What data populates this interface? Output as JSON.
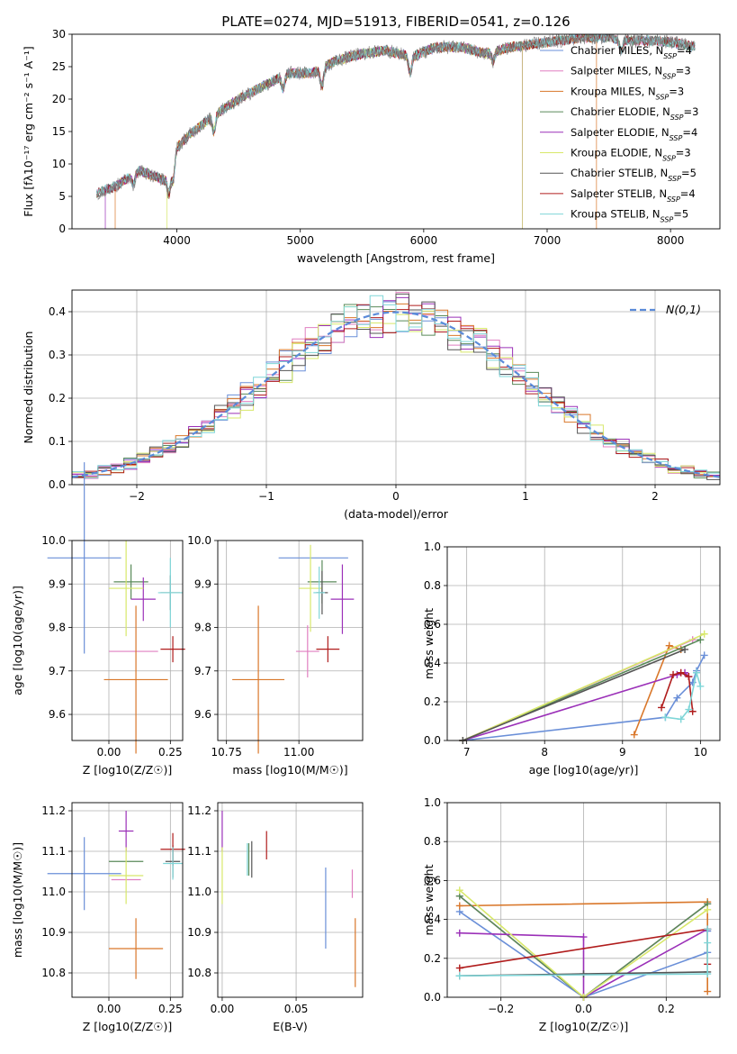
{
  "figure": {
    "title": "PLATE=0274, MJD=51913, FIBERID=0541, z=0.126"
  },
  "series_styles": [
    {
      "name": "Chabrier MILES",
      "n_ssp": "4",
      "color": "#6a8fd8"
    },
    {
      "name": "Salpeter MILES",
      "n_ssp": "3",
      "color": "#e07fc0"
    },
    {
      "name": "Kroupa MILES",
      "n_ssp": "3",
      "color": "#d9772a"
    },
    {
      "name": "Chabrier ELODIE",
      "n_ssp": "3",
      "color": "#5a8a5a"
    },
    {
      "name": "Salpeter ELODIE",
      "n_ssp": "4",
      "color": "#9b30b8"
    },
    {
      "name": "Kroupa ELODIE",
      "n_ssp": "3",
      "color": "#d8e86a"
    },
    {
      "name": "Chabrier STELIB",
      "n_ssp": "5",
      "color": "#555555"
    },
    {
      "name": "Salpeter STELIB",
      "n_ssp": "4",
      "color": "#b01c1c"
    },
    {
      "name": "Kroupa STELIB",
      "n_ssp": "5",
      "color": "#7fd6d8"
    }
  ],
  "chart_data": [
    {
      "id": "spectrum",
      "type": "line",
      "title": "PLATE=0274, MJD=51913, FIBERID=0541, z=0.126",
      "xlabel": "wavelength [Angstrom, rest frame]",
      "ylabel": "Flux [fλ10⁻¹⁷ erg cm⁻² s⁻¹ A⁻¹]",
      "xlim": [
        3150,
        8400
      ],
      "ylim": [
        0,
        30
      ],
      "xticks": [
        4000,
        5000,
        6000,
        7000,
        8000
      ],
      "yticks": [
        0,
        5,
        10,
        15,
        20,
        25,
        30
      ],
      "grid": false,
      "legend": "upper-right",
      "legend_entries": [
        "Chabrier MILES, N_SSP=4",
        "Salpeter MILES, N_SSP=3",
        "Kroupa MILES, N_SSP=3",
        "Chabrier ELODIE, N_SSP=3",
        "Salpeter ELODIE, N_SSP=4",
        "Kroupa ELODIE, N_SSP=3",
        "Chabrier STELIB, N_SSP=5",
        "Salpeter STELIB, N_SSP=4",
        "Kroupa STELIB, N_SSP=5"
      ],
      "data_envelope": {
        "x": [
          3350,
          3500,
          3700,
          3900,
          4000,
          4100,
          4300,
          4500,
          4700,
          4900,
          5100,
          5300,
          5500,
          5700,
          5900,
          6100,
          6300,
          6500,
          6700,
          6900,
          7100,
          7300,
          7500,
          7700,
          7900,
          8100,
          8200
        ],
        "y": [
          5.5,
          6.5,
          9.0,
          7.5,
          12.5,
          14.5,
          17.5,
          20.0,
          22.0,
          24.0,
          24.0,
          26.0,
          27.0,
          27.5,
          26.5,
          28.0,
          28.0,
          27.0,
          28.0,
          28.5,
          29.0,
          29.5,
          29.5,
          29.0,
          29.0,
          28.5,
          28.0
        ]
      },
      "model_cutoffs": [
        {
          "series": "Kroupa MILES",
          "from": 3500,
          "to": 7400
        },
        {
          "series": "Kroupa ELODIE",
          "from": 3920,
          "to": 6800
        },
        {
          "series": "Salpeter ELODIE",
          "from": 3420,
          "to": 6800
        }
      ]
    },
    {
      "id": "residual-histogram",
      "type": "bar",
      "xlabel": "(data-model)/error",
      "ylabel": "Normed distribution",
      "xlim": [
        -2.5,
        2.5
      ],
      "ylim": [
        0,
        0.45
      ],
      "xticks": [
        -2,
        -1,
        0,
        1,
        2
      ],
      "yticks": [
        0.0,
        0.1,
        0.2,
        0.3,
        0.4
      ],
      "grid": true,
      "legend": "upper-right",
      "legend_entries": [
        "N(0,1)"
      ],
      "bin_edges_start": -2.5,
      "bin_width": 0.1,
      "reference_curve": "N(0,1)"
    },
    {
      "id": "age-vs-z",
      "type": "scatter",
      "xlabel": "Z [log10(Z/Z☉)]",
      "ylabel": "age  [log10(age/yr)]",
      "xlim": [
        -0.15,
        0.3
      ],
      "ylim": [
        9.54,
        10.0
      ],
      "xticks": [
        0.0,
        0.25
      ],
      "yticks": [
        9.6,
        9.7,
        9.8,
        9.9,
        10.0
      ],
      "grid": true,
      "points": [
        {
          "series": "Chabrier MILES",
          "x": -0.1,
          "xerr": 0.15,
          "y": 9.96,
          "yerr": 0.22
        },
        {
          "series": "Salpeter MILES",
          "x": 0.1,
          "xerr": 0.1,
          "y": 9.745,
          "yerr": 0.0
        },
        {
          "series": "Kroupa MILES",
          "x": 0.11,
          "xerr": 0.13,
          "y": 9.68,
          "yerr": 0.17
        },
        {
          "series": "Chabrier ELODIE",
          "x": 0.09,
          "xerr": 0.07,
          "y": 9.905,
          "yerr": 0.04
        },
        {
          "series": "Salpeter ELODIE",
          "x": 0.14,
          "xerr": 0.05,
          "y": 9.865,
          "yerr": 0.05
        },
        {
          "series": "Kroupa ELODIE",
          "x": 0.07,
          "xerr": 0.07,
          "y": 9.89,
          "yerr": 0.11
        },
        {
          "series": "Chabrier STELIB",
          "x": 0.25,
          "xerr": 0.04,
          "y": 9.88,
          "yerr": 0.04
        },
        {
          "series": "Salpeter STELIB",
          "x": 0.26,
          "xerr": 0.05,
          "y": 9.75,
          "yerr": 0.03
        },
        {
          "series": "Kroupa STELIB",
          "x": 0.25,
          "xerr": 0.05,
          "y": 9.88,
          "yerr": 0.08
        }
      ]
    },
    {
      "id": "age-vs-mass",
      "type": "scatter",
      "xlabel": "mass [log10(M/M☉)]",
      "ylabel": "",
      "xlim": [
        10.72,
        11.22
      ],
      "ylim": [
        9.54,
        10.0
      ],
      "xticks": [
        10.75,
        11.0
      ],
      "yticks": [
        9.6,
        9.7,
        9.8,
        9.9,
        10.0
      ],
      "grid": true,
      "points": [
        {
          "series": "Chabrier MILES",
          "x": 11.05,
          "xerr": 0.12,
          "y": 9.96,
          "yerr": 0.0
        },
        {
          "series": "Salpeter MILES",
          "x": 11.03,
          "xerr": 0.04,
          "y": 9.745,
          "yerr": 0.06
        },
        {
          "series": "Kroupa MILES",
          "x": 10.86,
          "xerr": 0.09,
          "y": 9.68,
          "yerr": 0.17
        },
        {
          "series": "Chabrier ELODIE",
          "x": 11.08,
          "xerr": 0.05,
          "y": 9.905,
          "yerr": 0.05
        },
        {
          "series": "Salpeter ELODIE",
          "x": 11.15,
          "xerr": 0.04,
          "y": 9.865,
          "yerr": 0.08
        },
        {
          "series": "Kroupa ELODIE",
          "x": 11.04,
          "xerr": 0.04,
          "y": 9.89,
          "yerr": 0.1
        },
        {
          "series": "Chabrier STELIB",
          "x": 11.08,
          "xerr": 0.02,
          "y": 9.88,
          "yerr": 0.05
        },
        {
          "series": "Salpeter STELIB",
          "x": 11.1,
          "xerr": 0.04,
          "y": 9.75,
          "yerr": 0.03
        },
        {
          "series": "Kroupa STELIB",
          "x": 11.07,
          "xerr": 0.02,
          "y": 9.88,
          "yerr": 0.06
        }
      ]
    },
    {
      "id": "mass-weight-vs-age",
      "type": "line",
      "xlabel": "age  [log10(age/yr)]",
      "ylabel": "mass weight",
      "xlim": [
        6.75,
        10.25
      ],
      "ylim": [
        0,
        1.0
      ],
      "xticks": [
        7,
        8,
        9,
        10
      ],
      "yticks": [
        0.0,
        0.2,
        0.4,
        0.6,
        0.8,
        1.0
      ],
      "grid": true,
      "series": [
        {
          "name": "Chabrier MILES",
          "x": [
            6.95,
            9.55,
            9.7,
            9.9,
            9.95,
            10.05
          ],
          "y": [
            0.0,
            0.12,
            0.22,
            0.3,
            0.36,
            0.44
          ]
        },
        {
          "name": "Salpeter MILES",
          "x": [
            6.95,
            9.9
          ],
          "y": [
            0.0,
            0.52
          ]
        },
        {
          "name": "Kroupa MILES",
          "x": [
            9.15,
            9.6,
            9.75
          ],
          "y": [
            0.03,
            0.49,
            0.47
          ]
        },
        {
          "name": "Chabrier ELODIE",
          "x": [
            6.95,
            10.0
          ],
          "y": [
            0.0,
            0.52
          ]
        },
        {
          "name": "Salpeter ELODIE",
          "x": [
            6.95,
            9.7,
            9.8,
            9.85
          ],
          "y": [
            0.0,
            0.34,
            0.35,
            0.33
          ]
        },
        {
          "name": "Kroupa ELODIE",
          "x": [
            6.95,
            10.05
          ],
          "y": [
            0.0,
            0.55
          ]
        },
        {
          "name": "Chabrier STELIB",
          "x": [
            6.95,
            9.8
          ],
          "y": [
            0.0,
            0.47
          ]
        },
        {
          "name": "Salpeter STELIB",
          "x": [
            9.5,
            9.65,
            9.75,
            9.85,
            9.9
          ],
          "y": [
            0.17,
            0.34,
            0.35,
            0.33,
            0.15
          ]
        },
        {
          "name": "Kroupa STELIB",
          "x": [
            9.55,
            9.75,
            9.85,
            9.95,
            10.0
          ],
          "y": [
            0.12,
            0.11,
            0.16,
            0.35,
            0.28
          ]
        }
      ]
    },
    {
      "id": "mass-vs-z",
      "type": "scatter",
      "xlabel": "Z [log10(Z/Z☉)]",
      "ylabel": "mass [log10(M/M☉)]",
      "xlim": [
        -0.15,
        0.3
      ],
      "ylim": [
        10.74,
        11.22
      ],
      "xticks": [
        0.0,
        0.25
      ],
      "yticks": [
        10.8,
        10.9,
        11.0,
        11.1,
        11.2
      ],
      "grid": true,
      "points": [
        {
          "series": "Chabrier MILES",
          "x": -0.1,
          "xerr": 0.15,
          "y": 11.045,
          "yerr": 0.09
        },
        {
          "series": "Salpeter MILES",
          "x": 0.07,
          "xerr": 0.06,
          "y": 11.03,
          "yerr": 0.0
        },
        {
          "series": "Kroupa MILES",
          "x": 0.11,
          "xerr": 0.11,
          "y": 10.86,
          "yerr": 0.075
        },
        {
          "series": "Chabrier ELODIE",
          "x": 0.07,
          "xerr": 0.07,
          "y": 11.075,
          "yerr": 0.0
        },
        {
          "series": "Salpeter ELODIE",
          "x": 0.07,
          "xerr": 0.03,
          "y": 11.15,
          "yerr": 0.05
        },
        {
          "series": "Kroupa ELODIE",
          "x": 0.07,
          "xerr": 0.07,
          "y": 11.04,
          "yerr": 0.07
        },
        {
          "series": "Chabrier STELIB",
          "x": 0.26,
          "xerr": 0.03,
          "y": 11.075,
          "yerr": 0.04
        },
        {
          "series": "Salpeter STELIB",
          "x": 0.26,
          "xerr": 0.05,
          "y": 11.105,
          "yerr": 0.04
        },
        {
          "series": "Kroupa STELIB",
          "x": 0.26,
          "xerr": 0.04,
          "y": 11.07,
          "yerr": 0.04
        }
      ]
    },
    {
      "id": "mass-vs-ebv",
      "type": "scatter",
      "xlabel": "E(B-V)",
      "ylabel": "",
      "xlim": [
        -0.003,
        0.095
      ],
      "ylim": [
        10.74,
        11.22
      ],
      "xticks": [
        0.0,
        0.05
      ],
      "yticks": [
        10.8,
        10.9,
        11.0,
        11.1,
        11.2
      ],
      "grid": true,
      "points": [
        {
          "series": "Chabrier MILES",
          "x": 0.07,
          "xerr": 0.0,
          "y": 10.96,
          "yerr": 0.1
        },
        {
          "series": "Salpeter MILES",
          "x": 0.088,
          "xerr": 0.0,
          "y": 11.02,
          "yerr": 0.035
        },
        {
          "series": "Kroupa MILES",
          "x": 0.09,
          "xerr": 0.0,
          "y": 10.85,
          "yerr": 0.085
        },
        {
          "series": "Chabrier ELODIE",
          "x": 0.018,
          "xerr": 0.0,
          "y": 11.08,
          "yerr": 0.04
        },
        {
          "series": "Salpeter ELODIE",
          "x": 0.0,
          "xerr": 0.0,
          "y": 11.15,
          "yerr": 0.05
        },
        {
          "series": "Kroupa ELODIE",
          "x": 0.0,
          "xerr": 0.0,
          "y": 11.04,
          "yerr": 0.07
        },
        {
          "series": "Chabrier STELIB",
          "x": 0.02,
          "xerr": 0.0,
          "y": 11.08,
          "yerr": 0.045
        },
        {
          "series": "Salpeter STELIB",
          "x": 0.03,
          "xerr": 0.0,
          "y": 11.115,
          "yerr": 0.035
        },
        {
          "series": "Kroupa STELIB",
          "x": 0.017,
          "xerr": 0.0,
          "y": 11.08,
          "yerr": 0.04
        }
      ]
    },
    {
      "id": "mass-weight-vs-z",
      "type": "line",
      "xlabel": "Z [log10(Z/Z☉)]",
      "ylabel": "mass weight",
      "xlim": [
        -0.33,
        0.33
      ],
      "ylim": [
        0,
        1.0
      ],
      "xticks": [
        -0.2,
        0.0,
        0.2
      ],
      "yticks": [
        0.0,
        0.2,
        0.4,
        0.6,
        0.8,
        1.0
      ],
      "grid": true,
      "series": [
        {
          "name": "Chabrier MILES",
          "x": [
            -0.3,
            0.0,
            0.3,
            0.3
          ],
          "y": [
            0.44,
            0.0,
            0.23,
            0.34
          ]
        },
        {
          "name": "Salpeter MILES",
          "x": [
            -0.3,
            0.0,
            0.3
          ],
          "y": [
            0.52,
            0.0,
            0.48
          ]
        },
        {
          "name": "Kroupa MILES",
          "x": [
            -0.3,
            0.3,
            0.3
          ],
          "y": [
            0.47,
            0.49,
            0.03
          ]
        },
        {
          "name": "Chabrier ELODIE",
          "x": [
            -0.3,
            0.0,
            0.3
          ],
          "y": [
            0.52,
            0.0,
            0.48
          ]
        },
        {
          "name": "Salpeter ELODIE",
          "x": [
            -0.3,
            0.0,
            0.0,
            0.3
          ],
          "y": [
            0.33,
            0.31,
            0.0,
            0.35
          ]
        },
        {
          "name": "Kroupa ELODIE",
          "x": [
            -0.3,
            0.0,
            0.3
          ],
          "y": [
            0.55,
            0.0,
            0.45
          ]
        },
        {
          "name": "Chabrier STELIB",
          "x": [
            -0.3,
            0.0,
            0.3
          ],
          "y": [
            0.11,
            0.12,
            0.13
          ]
        },
        {
          "name": "Salpeter STELIB",
          "x": [
            -0.3,
            0.3,
            0.3
          ],
          "y": [
            0.15,
            0.35,
            0.17
          ]
        },
        {
          "name": "Kroupa STELIB",
          "x": [
            -0.3,
            0.3,
            0.3,
            0.3
          ],
          "y": [
            0.11,
            0.12,
            0.28,
            0.35
          ]
        }
      ]
    }
  ]
}
